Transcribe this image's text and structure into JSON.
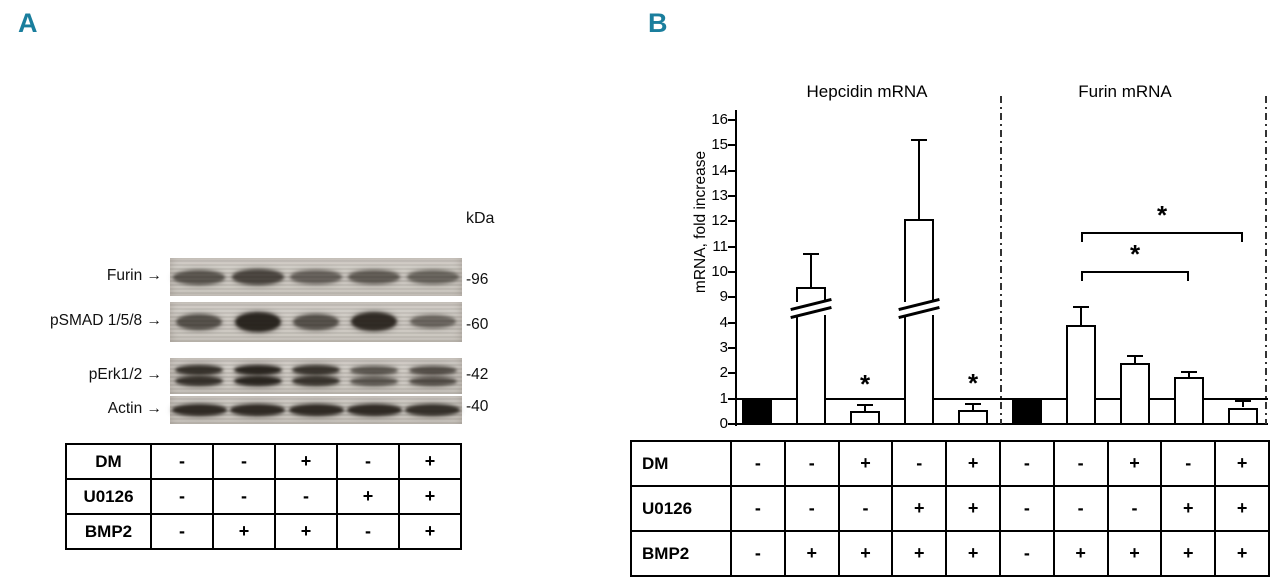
{
  "style": {
    "panel_label_color": "#1a7e9d",
    "bar_fill_white": "#ffffff",
    "bar_fill_black": "#000000"
  },
  "panel_a": {
    "label": "A",
    "kda_label": "kDa",
    "blot_rows": [
      {
        "label": "Furin",
        "arrow": "→",
        "mw": "-96",
        "band_type": "single",
        "bands": [
          0.65,
          0.85,
          0.55,
          0.6,
          0.5
        ]
      },
      {
        "label": "pSMAD 1/5/8",
        "arrow": "→",
        "mw": "-60",
        "band_type": "single",
        "bands": [
          0.6,
          1.0,
          0.6,
          0.95,
          0.4
        ]
      },
      {
        "label": "pErk1/2",
        "arrow": "→",
        "mw": "-42",
        "band_type": "double",
        "bands": [
          0.9,
          1.0,
          0.85,
          0.5,
          0.6
        ]
      },
      {
        "label": "Actin",
        "arrow": "→",
        "mw": "-40",
        "band_type": "single",
        "bands": [
          0.95,
          0.95,
          0.95,
          0.95,
          0.9
        ]
      }
    ],
    "table": {
      "rows": [
        {
          "label": "DM",
          "signs": [
            "-",
            "-",
            "+",
            "-",
            "+"
          ]
        },
        {
          "label": "U0126",
          "signs": [
            "-",
            "-",
            "-",
            "+",
            "+"
          ]
        },
        {
          "label": "BMP2",
          "signs": [
            "-",
            "+",
            "+",
            "-",
            "+"
          ]
        }
      ]
    }
  },
  "panel_b": {
    "label": "B",
    "table": {
      "rows": [
        {
          "label": "DM",
          "signs": [
            "-",
            "-",
            "+",
            "-",
            "+",
            "-",
            "-",
            "+",
            "-",
            "+"
          ]
        },
        {
          "label": "U0126",
          "signs": [
            "-",
            "-",
            "-",
            "+",
            "+",
            "-",
            "-",
            "-",
            "+",
            "+"
          ]
        },
        {
          "label": "BMP2",
          "signs": [
            "-",
            "+",
            "+",
            "+",
            "+",
            "-",
            "+",
            "+",
            "+",
            "+"
          ]
        }
      ]
    }
  },
  "chart_data": {
    "type": "bar",
    "ylabel": "mRNA, fold increase",
    "y_ticks": [
      0,
      1,
      2,
      3,
      4,
      9,
      10,
      11,
      12,
      13,
      14,
      15,
      16
    ],
    "y_axis_break_between": [
      4,
      9
    ],
    "reference_line_y": 1,
    "grid": false,
    "groups": [
      {
        "title": "Hepcidin mRNA",
        "bars": [
          {
            "condition": "control",
            "value": 1.0,
            "error_top": null,
            "fill": "black",
            "axis_break": false,
            "star": false
          },
          {
            "condition": "BMP2",
            "value": 9.4,
            "error_top": 10.7,
            "fill": "white",
            "axis_break": true,
            "star": false
          },
          {
            "condition": "DM+BMP2",
            "value": 0.5,
            "error_top": 0.75,
            "fill": "white",
            "axis_break": false,
            "star": true
          },
          {
            "condition": "U0126+BMP2",
            "value": 12.1,
            "error_top": 15.2,
            "fill": "white",
            "axis_break": true,
            "star": false
          },
          {
            "condition": "DM+U0126+BMP2",
            "value": 0.55,
            "error_top": 0.78,
            "fill": "white",
            "axis_break": false,
            "star": true
          }
        ]
      },
      {
        "title": "Furin mRNA",
        "bars": [
          {
            "condition": "control",
            "value": 1.0,
            "error_top": null,
            "fill": "black",
            "axis_break": false,
            "star": false
          },
          {
            "condition": "BMP2",
            "value": 3.9,
            "error_top": 4.6,
            "fill": "white",
            "axis_break": false,
            "star": false
          },
          {
            "condition": "DM+BMP2",
            "value": 2.4,
            "error_top": 2.7,
            "fill": "white",
            "axis_break": false,
            "star": false
          },
          {
            "condition": "U0126+BMP2",
            "value": 1.85,
            "error_top": 2.05,
            "fill": "white",
            "axis_break": false,
            "star": false
          },
          {
            "condition": "DM+U0126+BMP2",
            "value": 0.65,
            "error_top": 0.9,
            "fill": "white",
            "axis_break": false,
            "star": false
          }
        ]
      }
    ],
    "significance_brackets": [
      {
        "group": 1,
        "from_bar": 1,
        "to_bar": 4,
        "label": "*"
      },
      {
        "group": 1,
        "from_bar": 1,
        "to_bar": 3,
        "label": "*"
      }
    ]
  }
}
